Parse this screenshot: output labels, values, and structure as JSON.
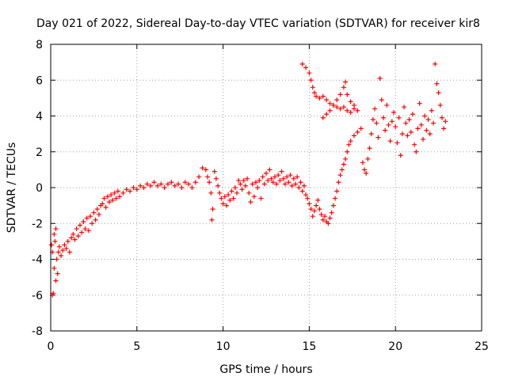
{
  "chart_data": {
    "type": "scatter",
    "title": "Day 021 of 2022, Sidereal Day-to-day VTEC variation (SDTVAR) for receiver kir8",
    "xlabel": "GPS time / hours",
    "ylabel": "SDTVAR / TECUs",
    "xlim": [
      0,
      25
    ],
    "ylim": [
      -8,
      8
    ],
    "xticks": [
      0,
      5,
      10,
      15,
      20,
      25
    ],
    "yticks": [
      -8,
      -6,
      -4,
      -2,
      0,
      2,
      4,
      6,
      8
    ],
    "grid": true,
    "marker": "+",
    "color": "#ff0000",
    "series": [
      {
        "name": "SDTVAR",
        "points": [
          [
            0.05,
            -3.2
          ],
          [
            0.1,
            -3.6
          ],
          [
            0.1,
            -6.0
          ],
          [
            0.15,
            -5.9
          ],
          [
            0.2,
            -2.6
          ],
          [
            0.2,
            -4.5
          ],
          [
            0.25,
            -3.0
          ],
          [
            0.3,
            -5.2
          ],
          [
            0.3,
            -2.3
          ],
          [
            0.35,
            -4.0
          ],
          [
            0.4,
            -4.8
          ],
          [
            0.45,
            -3.6
          ],
          [
            0.5,
            -3.3
          ],
          [
            0.6,
            -3.8
          ],
          [
            0.7,
            -3.5
          ],
          [
            0.8,
            -3.2
          ],
          [
            0.9,
            -3.4
          ],
          [
            1.0,
            -3.0
          ],
          [
            1.1,
            -3.6
          ],
          [
            1.2,
            -2.8
          ],
          [
            1.3,
            -2.6
          ],
          [
            1.4,
            -2.9
          ],
          [
            1.5,
            -2.3
          ],
          [
            1.6,
            -2.7
          ],
          [
            1.7,
            -2.1
          ],
          [
            1.8,
            -2.5
          ],
          [
            1.9,
            -1.9
          ],
          [
            2.0,
            -2.3
          ],
          [
            2.1,
            -1.7
          ],
          [
            2.2,
            -2.4
          ],
          [
            2.3,
            -1.6
          ],
          [
            2.4,
            -2.0
          ],
          [
            2.5,
            -1.4
          ],
          [
            2.6,
            -1.8
          ],
          [
            2.7,
            -1.2
          ],
          [
            2.8,
            -1.5
          ],
          [
            2.9,
            -1.0
          ],
          [
            3.0,
            -0.9
          ],
          [
            3.1,
            -0.6
          ],
          [
            3.2,
            -1.1
          ],
          [
            3.3,
            -0.5
          ],
          [
            3.4,
            -0.8
          ],
          [
            3.5,
            -0.4
          ],
          [
            3.6,
            -0.7
          ],
          [
            3.7,
            -0.3
          ],
          [
            3.8,
            -0.6
          ],
          [
            3.9,
            -0.2
          ],
          [
            4.0,
            -0.5
          ],
          [
            4.2,
            -0.3
          ],
          [
            4.4,
            -0.1
          ],
          [
            4.6,
            -0.2
          ],
          [
            4.8,
            0.0
          ],
          [
            5.0,
            -0.1
          ],
          [
            5.2,
            0.1
          ],
          [
            5.4,
            0.0
          ],
          [
            5.6,
            0.2
          ],
          [
            5.8,
            0.1
          ],
          [
            6.0,
            0.3
          ],
          [
            6.2,
            0.1
          ],
          [
            6.4,
            0.2
          ],
          [
            6.6,
            0.0
          ],
          [
            6.8,
            0.2
          ],
          [
            7.0,
            0.3
          ],
          [
            7.2,
            0.1
          ],
          [
            7.4,
            0.2
          ],
          [
            7.6,
            0.0
          ],
          [
            7.8,
            0.3
          ],
          [
            8.0,
            0.2
          ],
          [
            8.2,
            0.0
          ],
          [
            8.4,
            0.3
          ],
          [
            8.6,
            0.6
          ],
          [
            8.8,
            1.1
          ],
          [
            9.0,
            1.0
          ],
          [
            9.1,
            0.6
          ],
          [
            9.2,
            0.3
          ],
          [
            9.3,
            -0.3
          ],
          [
            9.35,
            -1.8
          ],
          [
            9.4,
            -1.2
          ],
          [
            9.5,
            0.9
          ],
          [
            9.6,
            0.5
          ],
          [
            9.7,
            0.1
          ],
          [
            9.8,
            -0.3
          ],
          [
            9.9,
            -0.6
          ],
          [
            10.0,
            -0.9
          ],
          [
            10.1,
            -0.5
          ],
          [
            10.2,
            -1.0
          ],
          [
            10.3,
            -0.4
          ],
          [
            10.4,
            -0.7
          ],
          [
            10.5,
            -0.2
          ],
          [
            10.6,
            -0.6
          ],
          [
            10.7,
            0.0
          ],
          [
            10.8,
            -0.3
          ],
          [
            10.9,
            0.4
          ],
          [
            11.0,
            0.2
          ],
          [
            11.1,
            -0.1
          ],
          [
            11.2,
            0.4
          ],
          [
            11.3,
            0.1
          ],
          [
            11.4,
            0.5
          ],
          [
            11.5,
            -0.3
          ],
          [
            11.6,
            -0.8
          ],
          [
            11.7,
            0.2
          ],
          [
            11.8,
            -0.5
          ],
          [
            11.9,
            0.3
          ],
          [
            12.0,
            0.0
          ],
          [
            12.1,
            0.4
          ],
          [
            12.2,
            -0.6
          ],
          [
            12.3,
            0.6
          ],
          [
            12.4,
            0.2
          ],
          [
            12.5,
            0.8
          ],
          [
            12.6,
            0.4
          ],
          [
            12.7,
            1.0
          ],
          [
            12.8,
            0.5
          ],
          [
            12.9,
            0.3
          ],
          [
            13.0,
            0.6
          ],
          [
            13.1,
            0.2
          ],
          [
            13.2,
            0.7
          ],
          [
            13.3,
            0.4
          ],
          [
            13.4,
            0.9
          ],
          [
            13.5,
            0.5
          ],
          [
            13.6,
            0.2
          ],
          [
            13.7,
            0.6
          ],
          [
            13.8,
            0.3
          ],
          [
            13.9,
            0.7
          ],
          [
            14.0,
            0.1
          ],
          [
            14.1,
            0.5
          ],
          [
            14.2,
            0.2
          ],
          [
            14.3,
            0.6
          ],
          [
            14.4,
            0.0
          ],
          [
            14.5,
            0.3
          ],
          [
            14.6,
            -0.2
          ],
          [
            14.7,
            0.1
          ],
          [
            14.8,
            -0.4
          ],
          [
            14.9,
            -0.6
          ],
          [
            15.0,
            -0.9
          ],
          [
            15.1,
            -1.2
          ],
          [
            15.2,
            -1.6
          ],
          [
            15.3,
            -1.3
          ],
          [
            15.4,
            -1.0
          ],
          [
            15.5,
            -0.7
          ],
          [
            15.6,
            -1.2
          ],
          [
            15.7,
            -1.5
          ],
          [
            15.8,
            -1.8
          ],
          [
            15.9,
            -1.6
          ],
          [
            16.0,
            -1.9
          ],
          [
            16.1,
            -2.0
          ],
          [
            16.2,
            -1.7
          ],
          [
            16.3,
            -1.4
          ],
          [
            16.4,
            -1.0
          ],
          [
            16.5,
            -0.6
          ],
          [
            16.6,
            -0.2
          ],
          [
            16.7,
            0.3
          ],
          [
            16.8,
            0.7
          ],
          [
            16.9,
            1.0
          ],
          [
            17.0,
            1.3
          ],
          [
            17.1,
            1.6
          ],
          [
            17.2,
            2.0
          ],
          [
            17.3,
            2.4
          ],
          [
            14.6,
            6.9
          ],
          [
            14.8,
            6.7
          ],
          [
            15.0,
            6.4
          ],
          [
            15.1,
            6.0
          ],
          [
            15.2,
            5.6
          ],
          [
            15.3,
            5.3
          ],
          [
            15.4,
            5.1
          ],
          [
            15.6,
            5.0
          ],
          [
            15.8,
            5.1
          ],
          [
            16.0,
            4.9
          ],
          [
            16.2,
            4.7
          ],
          [
            16.4,
            4.6
          ],
          [
            16.6,
            4.5
          ],
          [
            16.8,
            4.4
          ],
          [
            17.0,
            4.5
          ],
          [
            17.2,
            4.3
          ],
          [
            17.4,
            4.2
          ],
          [
            17.6,
            4.4
          ],
          [
            15.8,
            3.9
          ],
          [
            16.0,
            4.1
          ],
          [
            16.2,
            4.3
          ],
          [
            16.4,
            4.6
          ],
          [
            16.6,
            4.9
          ],
          [
            16.8,
            5.2
          ],
          [
            17.0,
            5.6
          ],
          [
            17.1,
            5.9
          ],
          [
            17.2,
            5.2
          ],
          [
            17.4,
            4.8
          ],
          [
            17.6,
            4.6
          ],
          [
            17.8,
            4.3
          ],
          [
            17.4,
            2.6
          ],
          [
            17.6,
            2.9
          ],
          [
            17.8,
            3.1
          ],
          [
            18.0,
            3.3
          ],
          [
            18.1,
            1.4
          ],
          [
            18.2,
            1.0
          ],
          [
            18.3,
            0.8
          ],
          [
            18.4,
            1.6
          ],
          [
            18.5,
            2.2
          ],
          [
            18.6,
            3.0
          ],
          [
            18.7,
            3.8
          ],
          [
            18.8,
            4.4
          ],
          [
            18.9,
            3.6
          ],
          [
            19.0,
            2.8
          ],
          [
            19.1,
            6.1
          ],
          [
            19.2,
            4.9
          ],
          [
            19.3,
            3.9
          ],
          [
            19.4,
            3.2
          ],
          [
            19.5,
            4.6
          ],
          [
            19.6,
            3.5
          ],
          [
            19.7,
            2.6
          ],
          [
            19.8,
            3.7
          ],
          [
            19.9,
            4.2
          ],
          [
            20.0,
            3.4
          ],
          [
            20.1,
            2.5
          ],
          [
            20.2,
            3.9
          ],
          [
            20.3,
            1.8
          ],
          [
            20.4,
            3.0
          ],
          [
            20.5,
            4.5
          ],
          [
            20.6,
            3.6
          ],
          [
            20.7,
            2.9
          ],
          [
            20.8,
            3.8
          ],
          [
            20.9,
            3.1
          ],
          [
            21.0,
            4.1
          ],
          [
            21.1,
            2.4
          ],
          [
            21.2,
            2.0
          ],
          [
            21.3,
            3.3
          ],
          [
            21.4,
            4.7
          ],
          [
            21.5,
            3.5
          ],
          [
            21.6,
            2.7
          ],
          [
            21.7,
            4.0
          ],
          [
            21.8,
            3.2
          ],
          [
            21.9,
            3.8
          ],
          [
            22.0,
            3.0
          ],
          [
            22.1,
            4.3
          ],
          [
            22.2,
            3.6
          ],
          [
            22.3,
            6.9
          ],
          [
            22.4,
            5.8
          ],
          [
            22.5,
            5.3
          ],
          [
            22.6,
            4.6
          ],
          [
            22.7,
            3.9
          ],
          [
            22.8,
            3.3
          ],
          [
            22.9,
            3.7
          ]
        ]
      }
    ]
  }
}
